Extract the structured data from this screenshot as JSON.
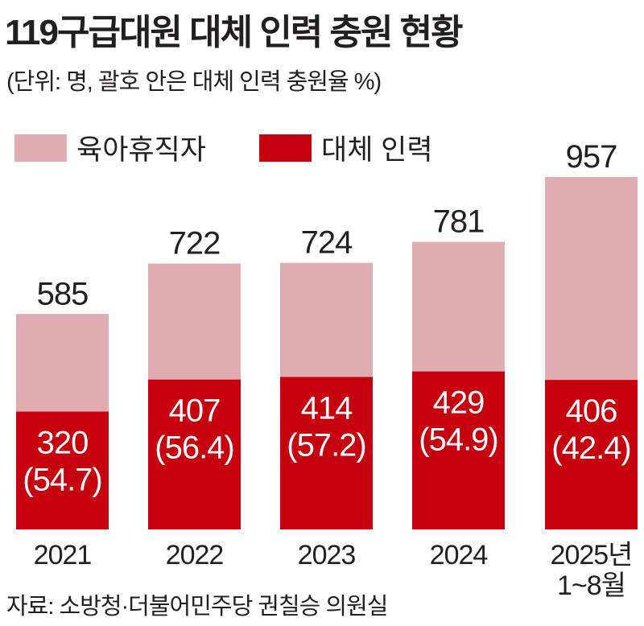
{
  "title": "119구급대원 대체 인력 충원 현황",
  "subtitle": "(단위: 명, 괄호 안은 대체 인력 충원율 %)",
  "source": "자료: 소방청·더불어민주당 권칠승 의원실",
  "colors": {
    "total": "#dfadb1",
    "replacement": "#c6000e"
  },
  "chart_data": {
    "type": "bar",
    "title": "119구급대원 대체 인력 충원 현황",
    "categories": [
      "2021",
      "2022",
      "2023",
      "2024",
      "2025년|1~8월"
    ],
    "series": [
      {
        "name": "육아휴직자",
        "values": [
          585,
          722,
          724,
          781,
          957
        ]
      },
      {
        "name": "대체 인력",
        "values": [
          320,
          407,
          414,
          429,
          406
        ]
      }
    ],
    "rates": [
      "(54.7)",
      "(56.4)",
      "(57.2)",
      "(54.9)",
      "(42.4)"
    ],
    "ylim": [
      0,
      957
    ],
    "legend": "top-left",
    "grid": false
  }
}
